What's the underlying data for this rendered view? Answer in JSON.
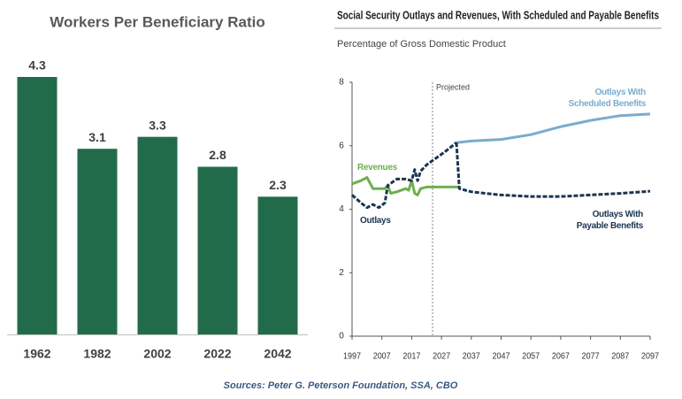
{
  "chart_data": [
    {
      "type": "bar",
      "title": "Workers Per Beneficiary Ratio",
      "categories": [
        "1962",
        "1982",
        "2002",
        "2022",
        "2042"
      ],
      "values": [
        4.3,
        3.1,
        3.3,
        2.8,
        2.3
      ],
      "color": "#226b4a"
    },
    {
      "type": "line",
      "title": "Social Security Outlays and Revenues, With Scheduled and Payable Benefits",
      "subtitle": "Percentage of Gross Domestic Product",
      "xlim": [
        1997,
        2097
      ],
      "xticks": [
        1997,
        2007,
        2017,
        2027,
        2037,
        2047,
        2057,
        2067,
        2077,
        2087,
        2097
      ],
      "ylim": [
        0,
        8
      ],
      "yticks": [
        0,
        2,
        4,
        6,
        8
      ],
      "annotations": [
        {
          "text": "Projected",
          "x": 2024
        }
      ],
      "series": [
        {
          "name": "Revenues",
          "color": "#6fae4f",
          "dashed": false,
          "x": [
            1997,
            2000,
            2002,
            2004,
            2008,
            2009,
            2010,
            2012,
            2015,
            2016,
            2017,
            2018,
            2019,
            2020,
            2022,
            2026,
            2033
          ],
          "values": [
            4.8,
            4.9,
            5.0,
            4.65,
            4.65,
            4.75,
            4.5,
            4.55,
            4.65,
            4.6,
            4.9,
            4.5,
            4.45,
            4.65,
            4.7,
            4.7,
            4.7
          ]
        },
        {
          "name": "Outlays",
          "color": "#1b3550",
          "dashed": true,
          "x": [
            1997,
            2000,
            2002,
            2004,
            2006,
            2008,
            2009,
            2012,
            2015,
            2017,
            2018,
            2019,
            2020,
            2022,
            2025,
            2028,
            2032
          ],
          "values": [
            4.45,
            4.2,
            4.05,
            4.15,
            4.05,
            4.2,
            4.75,
            4.95,
            4.95,
            4.9,
            5.25,
            4.9,
            5.2,
            5.4,
            5.6,
            5.8,
            6.1
          ]
        },
        {
          "name": "Outlays With Scheduled Benefits",
          "color": "#7aacce",
          "dashed": false,
          "x": [
            2032,
            2037,
            2047,
            2057,
            2067,
            2077,
            2087,
            2097
          ],
          "values": [
            6.1,
            6.15,
            6.2,
            6.35,
            6.6,
            6.8,
            6.95,
            7.0
          ]
        },
        {
          "name": "Outlays With Payable Benefits",
          "color": "#1b3550",
          "dashed": true,
          "x": [
            2032,
            2033,
            2037,
            2047,
            2057,
            2067,
            2077,
            2087,
            2097
          ],
          "values": [
            6.1,
            4.65,
            4.55,
            4.45,
            4.4,
            4.4,
            4.45,
            4.5,
            4.57
          ]
        }
      ]
    }
  ],
  "source": "Sources: Peter G. Peterson Foundation, SSA, CBO"
}
